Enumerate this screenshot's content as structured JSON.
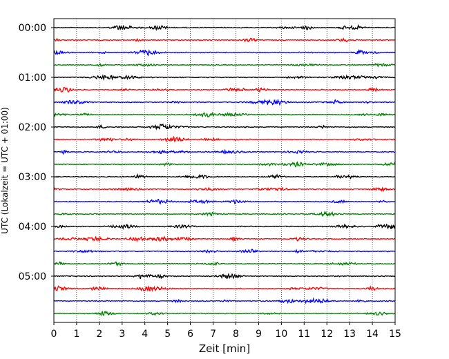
{
  "chart_data": {
    "type": "line",
    "title": "",
    "xlabel": "Zeit  [min]",
    "ylabel": "UTC (Lokalzeit = UTC + 01:00)",
    "xlim": [
      0,
      15
    ],
    "x_ticks": [
      "0",
      "1",
      "2",
      "3",
      "4",
      "5",
      "6",
      "7",
      "8",
      "9",
      "10",
      "11",
      "12",
      "13",
      "14",
      "15"
    ],
    "y_tick_labels": [
      "00:00",
      "01:00",
      "02:00",
      "03:00",
      "04:00",
      "05:00"
    ],
    "trace_interval_min": 15,
    "trace_count": 24,
    "trace_colors": [
      "#000000",
      "#ff0000",
      "#0000ff",
      "#007f00"
    ],
    "vertical_grid": true,
    "grid_style": "dotted",
    "signal": "seismic noise, small amplitude with occasional bursts"
  }
}
